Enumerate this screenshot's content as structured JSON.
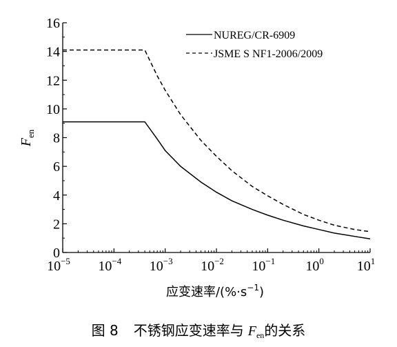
{
  "chart_data": {
    "type": "line",
    "x_scale": "log",
    "xlim": [
      1e-05,
      10
    ],
    "ylim": [
      0,
      16
    ],
    "x_ticks": [
      {
        "base": "10",
        "exp": "−5"
      },
      {
        "base": "10",
        "exp": "−4"
      },
      {
        "base": "10",
        "exp": "−3"
      },
      {
        "base": "10",
        "exp": "−2"
      },
      {
        "base": "10",
        "exp": "−1"
      },
      {
        "base": "10",
        "exp": "0"
      },
      {
        "base": "10",
        "exp": "1"
      }
    ],
    "y_ticks": [
      "0",
      "2",
      "4",
      "6",
      "8",
      "10",
      "12",
      "14",
      "16"
    ],
    "grid": false,
    "legend_position": "top-right",
    "ylabel": {
      "main": "F",
      "sub": "en"
    },
    "xlabel": {
      "main": "应变速率/(%·s",
      "exp": "−1",
      "tail": ")"
    },
    "series": [
      {
        "name": "NUREG/CR-6909",
        "style": "solid",
        "color": "#000000",
        "points": [
          [
            1e-05,
            9.1
          ],
          [
            0.0004,
            9.1
          ],
          [
            0.0007,
            7.9
          ],
          [
            0.001,
            7.1
          ],
          [
            0.002,
            6.0
          ],
          [
            0.005,
            4.9
          ],
          [
            0.01,
            4.2
          ],
          [
            0.02,
            3.6
          ],
          [
            0.05,
            3.0
          ],
          [
            0.1,
            2.6
          ],
          [
            0.2,
            2.25
          ],
          [
            0.5,
            1.85
          ],
          [
            1,
            1.6
          ],
          [
            2,
            1.35
          ],
          [
            5,
            1.12
          ],
          [
            10,
            0.95
          ]
        ]
      },
      {
        "name": "JSME S NF1-2006/2009",
        "style": "dashed",
        "color": "#000000",
        "points": [
          [
            1e-05,
            14.1
          ],
          [
            0.0004,
            14.1
          ],
          [
            0.0007,
            12.3
          ],
          [
            0.001,
            11.3
          ],
          [
            0.002,
            9.6
          ],
          [
            0.005,
            7.8
          ],
          [
            0.01,
            6.7
          ],
          [
            0.02,
            5.7
          ],
          [
            0.05,
            4.6
          ],
          [
            0.1,
            3.95
          ],
          [
            0.2,
            3.35
          ],
          [
            0.5,
            2.65
          ],
          [
            1,
            2.25
          ],
          [
            2,
            1.9
          ],
          [
            5,
            1.6
          ],
          [
            10,
            1.45
          ]
        ]
      }
    ]
  },
  "caption": {
    "label": "图 8",
    "text_before": "不锈钢应变速率与",
    "symbol": "F",
    "symbol_sub": "en",
    "text_after": "的关系"
  }
}
